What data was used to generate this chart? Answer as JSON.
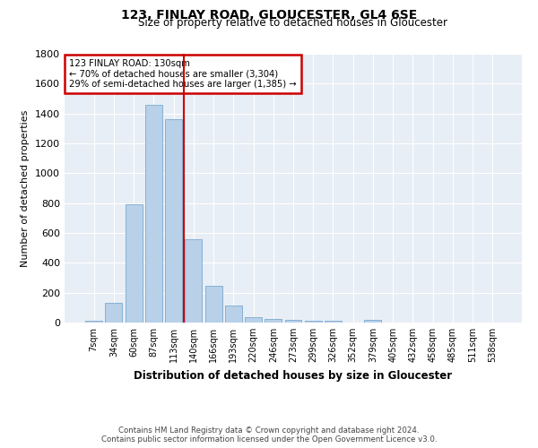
{
  "title1": "123, FINLAY ROAD, GLOUCESTER, GL4 6SE",
  "title2": "Size of property relative to detached houses in Gloucester",
  "xlabel": "Distribution of detached houses by size in Gloucester",
  "ylabel": "Number of detached properties",
  "categories": [
    "7sqm",
    "34sqm",
    "60sqm",
    "87sqm",
    "113sqm",
    "140sqm",
    "166sqm",
    "193sqm",
    "220sqm",
    "246sqm",
    "273sqm",
    "299sqm",
    "326sqm",
    "352sqm",
    "379sqm",
    "405sqm",
    "432sqm",
    "458sqm",
    "485sqm",
    "511sqm",
    "538sqm"
  ],
  "values": [
    10,
    130,
    795,
    1460,
    1360,
    560,
    245,
    115,
    35,
    25,
    20,
    15,
    15,
    0,
    20,
    0,
    0,
    0,
    0,
    0,
    0
  ],
  "bar_color": "#b8d0e8",
  "bar_edge_color": "#7aaad0",
  "vline_x_index": 4.5,
  "vline_color": "#cc0000",
  "annotation_line1": "123 FINLAY ROAD: 130sqm",
  "annotation_line2": "← 70% of detached houses are smaller (3,304)",
  "annotation_line3": "29% of semi-detached houses are larger (1,385) →",
  "annotation_box_color": "#cc0000",
  "ylim": [
    0,
    1800
  ],
  "yticks": [
    0,
    200,
    400,
    600,
    800,
    1000,
    1200,
    1400,
    1600,
    1800
  ],
  "footer1": "Contains HM Land Registry data © Crown copyright and database right 2024.",
  "footer2": "Contains public sector information licensed under the Open Government Licence v3.0.",
  "bg_color": "#ffffff",
  "plot_bg_color": "#e8eef5"
}
